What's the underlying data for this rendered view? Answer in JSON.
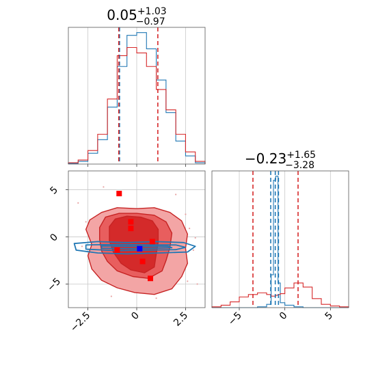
{
  "chart_data": {
    "type": "corner",
    "panels": [
      {
        "id": "hist-x",
        "type": "histogram",
        "title": {
          "value": "0.05",
          "upper": "+1.03",
          "lower": "−0.97"
        },
        "xlim": [
          -3.5,
          3.5
        ],
        "xticks": [
          -2.5,
          0.0,
          2.5
        ],
        "edges": [
          -3.5,
          -3.0,
          -2.5,
          -2.0,
          -1.5,
          -1.0,
          -0.5,
          0.0,
          0.5,
          1.0,
          1.5,
          2.0,
          2.5,
          3.0,
          3.5
        ],
        "series": [
          {
            "color": "#1f77b4",
            "counts": [
              0.5,
              2,
              8,
              18,
              42,
              72,
              95,
              97,
              85,
              62,
              38,
              17,
              6,
              1
            ]
          },
          {
            "color": "#d62728",
            "counts": [
              1,
              3,
              10,
              22,
              48,
              80,
              86,
              82,
              72,
              55,
              40,
              22,
              9,
              2
            ]
          }
        ],
        "quantile_lines": [
          {
            "color": "#1f77b4",
            "x": [
              -0.88
            ]
          },
          {
            "color": "#d62728",
            "x": [
              -0.92,
              1.08
            ]
          }
        ]
      },
      {
        "id": "hist-y",
        "type": "histogram",
        "title": {
          "value": "−0.23",
          "upper": "+1.65",
          "lower": "−3.28"
        },
        "xlim": [
          -8,
          7
        ],
        "xticks": [
          -5,
          0,
          5
        ],
        "edges": [
          -8,
          -7,
          -6,
          -5,
          -4,
          -3,
          -2,
          -1.5,
          -1.25,
          -1.0,
          -0.75,
          -0.5,
          0,
          1,
          2,
          3,
          4,
          5,
          6,
          7
        ],
        "series": [
          {
            "color": "#1f77b4",
            "counts": [
              0,
              0,
              0,
              0,
              0,
              1,
              4,
              40,
              155,
              160,
              30,
              6,
              3,
              1,
              0,
              0,
              0,
              0,
              0
            ]
          },
          {
            "color": "#d62728",
            "counts": [
              1,
              3,
              7,
              13,
              16,
              18,
              16,
              14,
              14,
              15,
              16,
              17,
              24,
              30,
              25,
              11,
              4,
              2,
              1
            ]
          }
        ],
        "quantile_lines": [
          {
            "color": "#1f77b4",
            "x": [
              -1.55,
              -1.05,
              -0.7
            ]
          },
          {
            "color": "#d62728",
            "x": [
              -3.5,
              1.45
            ]
          }
        ]
      },
      {
        "id": "scatter-2d",
        "type": "contour",
        "xlim": [
          -3.5,
          3.5
        ],
        "ylim": [
          -7.5,
          7
        ],
        "xticks": [
          -2.5,
          0.0,
          2.5
        ],
        "yticks": [
          5,
          0,
          -5
        ],
        "red_contours": [
          {
            "fill": "#f3a5a5",
            "points": [
              [
                -2.6,
                0.8
              ],
              [
                -2.4,
                1.8
              ],
              [
                -1.8,
                2.6
              ],
              [
                -1.0,
                3.1
              ],
              [
                0.0,
                3.0
              ],
              [
                0.9,
                3.1
              ],
              [
                1.7,
                2.6
              ],
              [
                2.3,
                1.7
              ],
              [
                2.6,
                0.3
              ],
              [
                2.5,
                -1.2
              ],
              [
                2.6,
                -2.8
              ],
              [
                2.3,
                -4.2
              ],
              [
                1.8,
                -5.5
              ],
              [
                0.9,
                -6.1
              ],
              [
                -0.1,
                -5.9
              ],
              [
                -1.0,
                -5.4
              ],
              [
                -1.8,
                -4.6
              ],
              [
                -2.3,
                -3.4
              ],
              [
                -2.5,
                -2.0
              ],
              [
                -2.3,
                -0.8
              ]
            ]
          },
          {
            "fill": "#e85e5e",
            "points": [
              [
                -1.9,
                1.0
              ],
              [
                -1.6,
                2.1
              ],
              [
                -0.9,
                2.5
              ],
              [
                0.0,
                2.5
              ],
              [
                0.9,
                2.3
              ],
              [
                1.5,
                1.6
              ],
              [
                1.8,
                0.4
              ],
              [
                1.7,
                -1.1
              ],
              [
                1.5,
                -2.5
              ],
              [
                1.3,
                -3.6
              ],
              [
                0.6,
                -4.4
              ],
              [
                -0.2,
                -4.2
              ],
              [
                -1.0,
                -3.6
              ],
              [
                -1.5,
                -2.6
              ],
              [
                -1.8,
                -1.5
              ],
              [
                -1.9,
                -0.3
              ]
            ]
          },
          {
            "fill": "#d42a2a",
            "points": [
              [
                -1.4,
                1.1
              ],
              [
                -1.1,
                1.9
              ],
              [
                -0.5,
                2.2
              ],
              [
                0.2,
                2.1
              ],
              [
                0.8,
                1.7
              ],
              [
                1.1,
                0.8
              ],
              [
                1.1,
                -0.6
              ],
              [
                1.0,
                -1.8
              ],
              [
                0.9,
                -3.2
              ],
              [
                0.4,
                -3.8
              ],
              [
                -0.3,
                -3.5
              ],
              [
                -0.8,
                -2.8
              ],
              [
                -1.2,
                -1.6
              ],
              [
                -1.4,
                -0.4
              ]
            ]
          }
        ],
        "blue_contours": [
          {
            "points": [
              [
                -3.2,
                -0.7
              ],
              [
                -2.0,
                -0.5
              ],
              [
                -0.5,
                -0.6
              ],
              [
                1.0,
                -0.5
              ],
              [
                2.4,
                -0.6
              ],
              [
                3.0,
                -1.0
              ],
              [
                2.6,
                -1.6
              ],
              [
                1.2,
                -1.7
              ],
              [
                -0.5,
                -1.8
              ],
              [
                -2.0,
                -1.7
              ],
              [
                -3.1,
                -1.4
              ]
            ]
          },
          {
            "points": [
              [
                -2.6,
                -0.85
              ],
              [
                -1.0,
                -0.8
              ],
              [
                0.5,
                -0.85
              ],
              [
                2.0,
                -0.85
              ],
              [
                2.5,
                -1.1
              ],
              [
                2.0,
                -1.35
              ],
              [
                0.5,
                -1.4
              ],
              [
                -1.0,
                -1.45
              ],
              [
                -2.6,
                -1.3
              ]
            ]
          },
          {
            "points": [
              [
                -1.8,
                -0.95
              ],
              [
                0.0,
                -1.0
              ],
              [
                1.6,
                -1.0
              ],
              [
                1.8,
                -1.15
              ],
              [
                0.0,
                -1.25
              ],
              [
                -1.8,
                -1.2
              ]
            ]
          }
        ],
        "markers_red": [
          [
            -0.9,
            4.6
          ],
          [
            -0.3,
            1.6
          ],
          [
            -0.3,
            0.9
          ],
          [
            0.8,
            -0.5
          ],
          [
            -1.0,
            -1.4
          ],
          [
            0.3,
            -2.6
          ],
          [
            0.7,
            -4.4
          ]
        ],
        "markers_blue": [
          [
            0.15,
            -1.25
          ]
        ],
        "scatter_points": [
          [
            -2.2,
            -2.9
          ],
          [
            2.9,
            -1.4
          ],
          [
            3.0,
            -0.1
          ],
          [
            2.6,
            -4.7
          ],
          [
            -2.8,
            -1.0
          ],
          [
            -1.7,
            5.3
          ],
          [
            2.5,
            2.4
          ],
          [
            -2.6,
            1.6
          ],
          [
            3.1,
            -5.0
          ],
          [
            -1.3,
            -6.3
          ],
          [
            1.0,
            -6.5
          ],
          [
            2.0,
            4.5
          ],
          [
            -3.0,
            3.6
          ],
          [
            2.7,
            0.9
          ]
        ]
      }
    ]
  }
}
